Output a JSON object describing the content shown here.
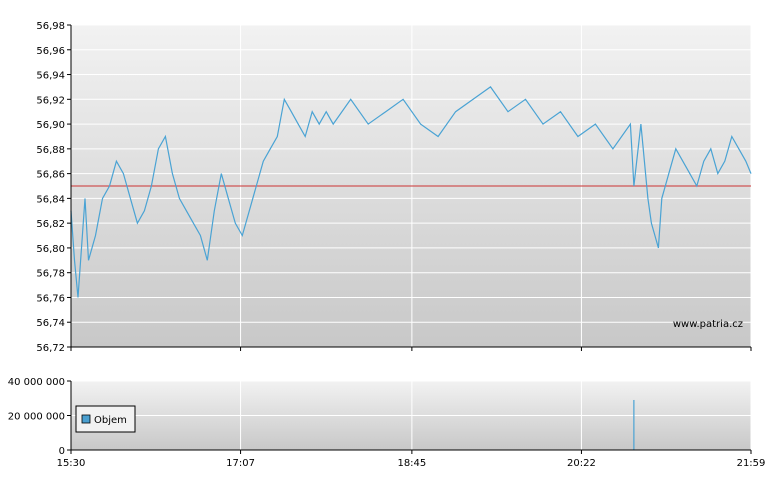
{
  "watermark": "www.patria.cz",
  "legend": {
    "label": "Objem",
    "swatch_color": "#4a9fd0"
  },
  "colors": {
    "price_line": "#4aa3d4",
    "reference_line": "#cc3333",
    "volume_bar": "#4aa3d4",
    "grid": "#ffffff",
    "axis": "#000000"
  },
  "x_ticks": [
    "15:30",
    "17:07",
    "18:45",
    "20:22",
    "21:59"
  ],
  "price_ticks": [
    "56,98",
    "56,96",
    "56,94",
    "56,92",
    "56,90",
    "56,88",
    "56,86",
    "56,84",
    "56,82",
    "56,80",
    "56,78",
    "56,76",
    "56,74",
    "56,72"
  ],
  "volume_ticks": [
    "40 000 000",
    "20 000 000",
    "0"
  ],
  "chart_data": [
    {
      "type": "line",
      "ylim": [
        56.72,
        56.98
      ],
      "xlim": [
        "15:30",
        "21:59"
      ],
      "reference_line": 56.85,
      "grid": true,
      "series": [
        {
          "x": [
            "15:30",
            "15:32",
            "15:34",
            "15:36",
            "15:38",
            "15:40",
            "15:42",
            "15:44",
            "15:48",
            "15:52",
            "15:56",
            "16:00",
            "16:04",
            "16:08",
            "16:12",
            "16:16",
            "16:20",
            "16:24",
            "16:28",
            "16:32",
            "16:36",
            "16:40",
            "16:44",
            "16:48",
            "16:52",
            "16:56",
            "17:00",
            "17:04",
            "17:08",
            "17:12",
            "17:16",
            "17:20",
            "17:24",
            "17:28",
            "17:32",
            "17:36",
            "17:40",
            "17:44",
            "17:48",
            "17:52",
            "17:56",
            "18:00",
            "18:10",
            "18:20",
            "18:30",
            "18:40",
            "18:50",
            "19:00",
            "19:10",
            "19:20",
            "19:30",
            "19:40",
            "19:50",
            "20:00",
            "20:10",
            "20:20",
            "20:30",
            "20:40",
            "20:50",
            "20:52",
            "20:56",
            "21:00",
            "21:02",
            "21:04",
            "21:06",
            "21:08",
            "21:12",
            "21:16",
            "21:20",
            "21:24",
            "21:28",
            "21:32",
            "21:36",
            "21:40",
            "21:44",
            "21:48",
            "21:52",
            "21:56",
            "21:59"
          ],
          "values": [
            56.83,
            56.79,
            56.76,
            56.8,
            56.84,
            56.79,
            56.8,
            56.81,
            56.84,
            56.85,
            56.87,
            56.86,
            56.84,
            56.82,
            56.83,
            56.85,
            56.88,
            56.89,
            56.86,
            56.84,
            56.83,
            56.82,
            56.81,
            56.79,
            56.83,
            56.86,
            56.84,
            56.82,
            56.81,
            56.83,
            56.85,
            56.87,
            56.88,
            56.89,
            56.92,
            56.91,
            56.9,
            56.89,
            56.91,
            56.9,
            56.91,
            56.9,
            56.92,
            56.9,
            56.91,
            56.92,
            56.9,
            56.89,
            56.91,
            56.92,
            56.93,
            56.91,
            56.92,
            56.9,
            56.91,
            56.89,
            56.9,
            56.88,
            56.9,
            56.85,
            56.9,
            56.84,
            56.82,
            56.81,
            56.8,
            56.84,
            56.86,
            56.88,
            56.87,
            56.86,
            56.85,
            56.87,
            56.88,
            56.86,
            56.87,
            56.89,
            56.88,
            56.87,
            56.86
          ]
        }
      ]
    },
    {
      "type": "bar",
      "ylim": [
        0,
        40000000
      ],
      "xlim": [
        "15:30",
        "21:59"
      ],
      "grid": true,
      "legend_position": "bottom-left",
      "series": [
        {
          "name": "Objem",
          "x": [
            "20:52"
          ],
          "values": [
            29000000
          ]
        }
      ]
    }
  ]
}
